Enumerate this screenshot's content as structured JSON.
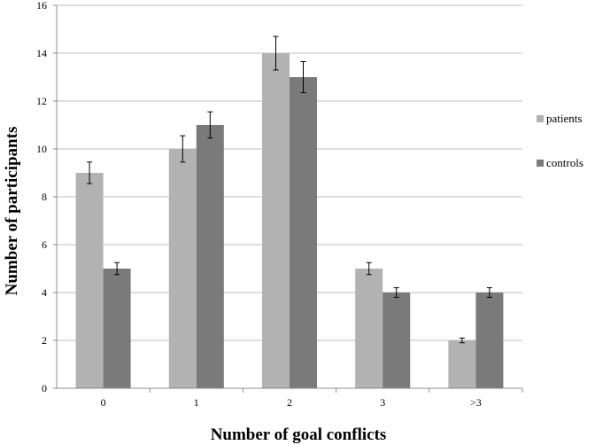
{
  "chart_data": {
    "type": "bar",
    "title": "",
    "xlabel": "Number of goal conflicts",
    "ylabel": "Number of participants",
    "categories": [
      "0",
      "1",
      "2",
      "3",
      ">3"
    ],
    "ylim": [
      0,
      16
    ],
    "yticks": [
      0,
      2,
      4,
      6,
      8,
      10,
      12,
      14,
      16
    ],
    "grid": "horizontal",
    "legend": "right",
    "series": [
      {
        "name": "patients",
        "color": "#b2b2b2",
        "values": [
          9,
          10,
          14,
          5,
          2
        ],
        "errors": [
          0.45,
          0.55,
          0.7,
          0.25,
          0.1
        ]
      },
      {
        "name": "controls",
        "color": "#7a7a7a",
        "values": [
          5,
          11,
          13,
          4,
          4
        ],
        "errors": [
          0.25,
          0.55,
          0.65,
          0.2,
          0.2
        ]
      }
    ]
  }
}
